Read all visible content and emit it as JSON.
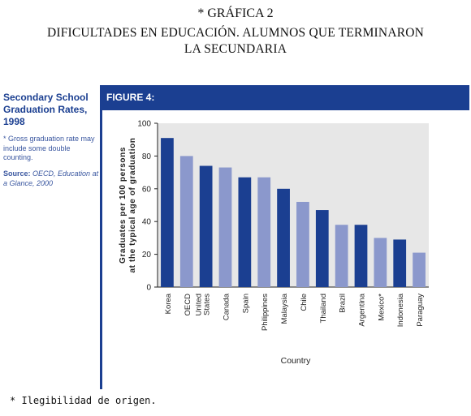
{
  "header": {
    "line1": "* GRÁFICA 2",
    "line2": "DIFICULTADES EN EDUCACIÓN. ALUMNOS QUE TERMINARON",
    "line3": "LA SECUNDARIA"
  },
  "sidebar": {
    "title_line1": "Secondary School",
    "title_line2": "Graduation Rates, 1998",
    "note": "* Gross graduation rate may include some double counting.",
    "source_label": "Source:",
    "source_text": "OECD, Education at a Glance, 2000"
  },
  "figure_label": "FIGURE 4:",
  "footnote": "* Ilegibilidad de origen.",
  "chart_data": {
    "type": "bar",
    "xlabel": "Country",
    "ylabel_line1": "Graduates per 100 persons",
    "ylabel_line2": "at the typical age of graduation",
    "ylim": [
      0,
      100
    ],
    "yticks": [
      "0",
      "20",
      "40",
      "60",
      "80",
      "100"
    ],
    "categories": [
      "Korea",
      "OECD",
      "United States",
      "Canada",
      "Spain",
      "Philippines",
      "Malaysia",
      "Chile",
      "Thailand",
      "Brazil",
      "Argentina",
      "Mexico*",
      "Indonesia",
      "Paraguay"
    ],
    "values": [
      91,
      80,
      74,
      73,
      67,
      67,
      60,
      52,
      47,
      38,
      38,
      30,
      29,
      21
    ],
    "colors": {
      "dark": "#1b3f91",
      "light": "#8b98cc",
      "background": "#e7e7e7",
      "axis": "#222222"
    },
    "bar_color_pattern": [
      "dark",
      "light",
      "dark",
      "light",
      "dark",
      "light",
      "dark",
      "light",
      "dark",
      "light",
      "dark",
      "light",
      "dark",
      "light"
    ]
  }
}
